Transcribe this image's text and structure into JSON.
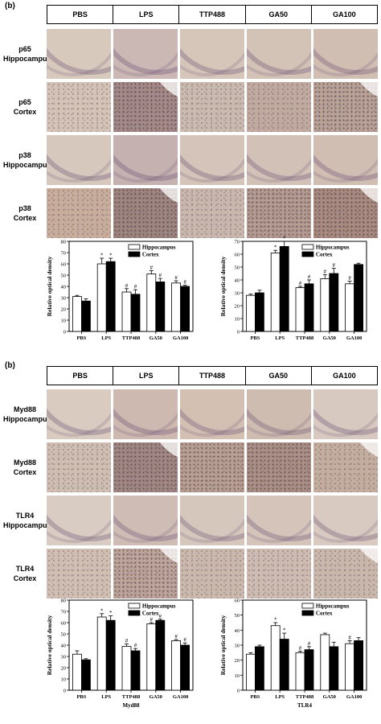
{
  "figure_top": {
    "panel_label": "(b)",
    "columns": [
      "PBS",
      "LPS",
      "TTP488",
      "GA50",
      "GA100"
    ],
    "rows": [
      {
        "line1": "p65",
        "line2": "Hippocampus",
        "kind": "hippocampus"
      },
      {
        "line1": "p65",
        "line2": "Cortex",
        "kind": "cortex"
      },
      {
        "line1": "p38",
        "line2": "Hippocampus",
        "kind": "hippocampus"
      },
      {
        "line1": "p38",
        "line2": "Cortex",
        "kind": "cortex"
      }
    ],
    "tile_colors": [
      [
        "#d8c9bd",
        "#cbb7b4",
        "#d6c6ba",
        "#d3c2b6",
        "#d1beb2"
      ],
      [
        "#d3c2b5",
        "#a48a88",
        "#cab9ae",
        "#c0aa9f",
        "#b9a398"
      ],
      [
        "#d6c8bd",
        "#c5b1b0",
        "#d4c4b9",
        "#d2c1b6",
        "#d1beb3"
      ],
      [
        "#c8ad9c",
        "#9d8580",
        "#c9b7ad",
        "#b49c92",
        "#a78a80"
      ]
    ]
  },
  "figure_bottom": {
    "panel_label": "(b)",
    "columns": [
      "PBS",
      "LPS",
      "TTP488",
      "GA50",
      "GA100"
    ],
    "rows": [
      {
        "line1": "Myd88",
        "line2": "Hippocampus",
        "kind": "hippocampus"
      },
      {
        "line1": "Myd88",
        "line2": "Cortex",
        "kind": "cortex"
      },
      {
        "line1": "TLR4",
        "line2": "Hippocampus",
        "kind": "hippocampus"
      },
      {
        "line1": "TLR4",
        "line2": "Cortex",
        "kind": "cortex"
      }
    ],
    "tile_colors": [
      [
        "#d9cbc0",
        "#cdb9b0",
        "#d3c0b3",
        "#cfbcb0",
        "#d7c8c0"
      ],
      [
        "#d0bdb1",
        "#a18783",
        "#b89f93",
        "#a98f86",
        "#c3ad9f"
      ],
      [
        "#d9ccc2",
        "#cfbdb5",
        "#d6c7bd",
        "#d4c4ba",
        "#d8cac0"
      ],
      [
        "#d0beb2",
        "#bda59c",
        "#cbb8ad",
        "#cdbbb1",
        "#cab7ac"
      ]
    ]
  },
  "chart_data": [
    {
      "type": "bar",
      "title": "",
      "xlabel": "",
      "ylabel": "Relative optical density",
      "categories": [
        "PBS",
        "LPS",
        "TTP488",
        "GA50",
        "GA100"
      ],
      "ylim": [
        0,
        80
      ],
      "yticks": [
        0,
        10,
        20,
        30,
        40,
        50,
        60,
        70,
        80
      ],
      "legend_position": "top-right",
      "series": [
        {
          "name": "Hippocampus",
          "color": "#ffffff",
          "values": [
            31,
            60,
            35,
            51,
            43
          ],
          "errors": [
            1,
            5,
            3,
            3,
            2
          ],
          "annotations": [
            "",
            "*",
            "#",
            "#",
            "#"
          ]
        },
        {
          "name": "Cortex",
          "color": "#000000",
          "values": [
            27,
            62,
            33,
            44,
            40
          ],
          "errors": [
            2,
            3,
            4,
            3,
            1
          ],
          "annotations": [
            "",
            "*",
            "#",
            "#",
            "#"
          ]
        }
      ]
    },
    {
      "type": "bar",
      "title": "",
      "xlabel": "",
      "ylabel": "Relative optical density",
      "categories": [
        "PBS",
        "LPS",
        "TTP488",
        "GA50",
        "GA100"
      ],
      "ylim": [
        0,
        70
      ],
      "yticks": [
        0,
        10,
        20,
        30,
        40,
        50,
        60,
        70
      ],
      "legend_position": "top-right",
      "series": [
        {
          "name": "Hippocampus",
          "color": "#ffffff",
          "values": [
            28,
            61,
            34,
            41,
            37
          ],
          "errors": [
            1,
            2,
            1,
            3,
            2
          ],
          "annotations": [
            "",
            "*",
            "#",
            "#",
            "#"
          ]
        },
        {
          "name": "Cortex",
          "color": "#000000",
          "values": [
            30,
            66,
            37,
            45,
            52
          ],
          "errors": [
            2,
            4,
            3,
            4,
            1
          ],
          "annotations": [
            "",
            "*",
            "#",
            "#",
            ""
          ]
        }
      ]
    },
    {
      "type": "bar",
      "title": "",
      "xlabel": "Myd88",
      "ylabel": "Relative optical density",
      "categories": [
        "PBS",
        "LPS",
        "TTP488",
        "GA50",
        "GA100"
      ],
      "ylim": [
        0,
        80
      ],
      "yticks": [
        0,
        10,
        20,
        30,
        40,
        50,
        60,
        70,
        80
      ],
      "legend_position": "top-right",
      "series": [
        {
          "name": "Hippocampus",
          "color": "#ffffff",
          "values": [
            32,
            65,
            39,
            59,
            44
          ],
          "errors": [
            3,
            3,
            2,
            1,
            1
          ],
          "annotations": [
            "",
            "*",
            "#",
            "#",
            "#"
          ]
        },
        {
          "name": "Cortex",
          "color": "#000000",
          "values": [
            27,
            62,
            35,
            62,
            40
          ],
          "errors": [
            1,
            4,
            2,
            1,
            2
          ],
          "annotations": [
            "",
            "*",
            "#",
            "#",
            "#"
          ]
        }
      ]
    },
    {
      "type": "bar",
      "title": "",
      "xlabel": "TLR4",
      "ylabel": "Relative optical density",
      "categories": [
        "PBS",
        "LPS",
        "TTP488",
        "GA50",
        "GA100"
      ],
      "ylim": [
        0,
        60
      ],
      "yticks": [
        0,
        10,
        20,
        30,
        40,
        50,
        60
      ],
      "legend_position": "top-right",
      "series": [
        {
          "name": "Hippocampus",
          "color": "#ffffff",
          "values": [
            24,
            43,
            25,
            37,
            31
          ],
          "errors": [
            1,
            2,
            1,
            1,
            2
          ],
          "annotations": [
            "",
            "*",
            "#",
            "",
            "#"
          ]
        },
        {
          "name": "Cortex",
          "color": "#000000",
          "values": [
            29,
            34,
            27,
            29,
            33
          ],
          "errors": [
            1,
            4,
            2,
            3,
            2
          ],
          "annotations": [
            "",
            "*",
            "#",
            "",
            ""
          ]
        }
      ]
    }
  ]
}
